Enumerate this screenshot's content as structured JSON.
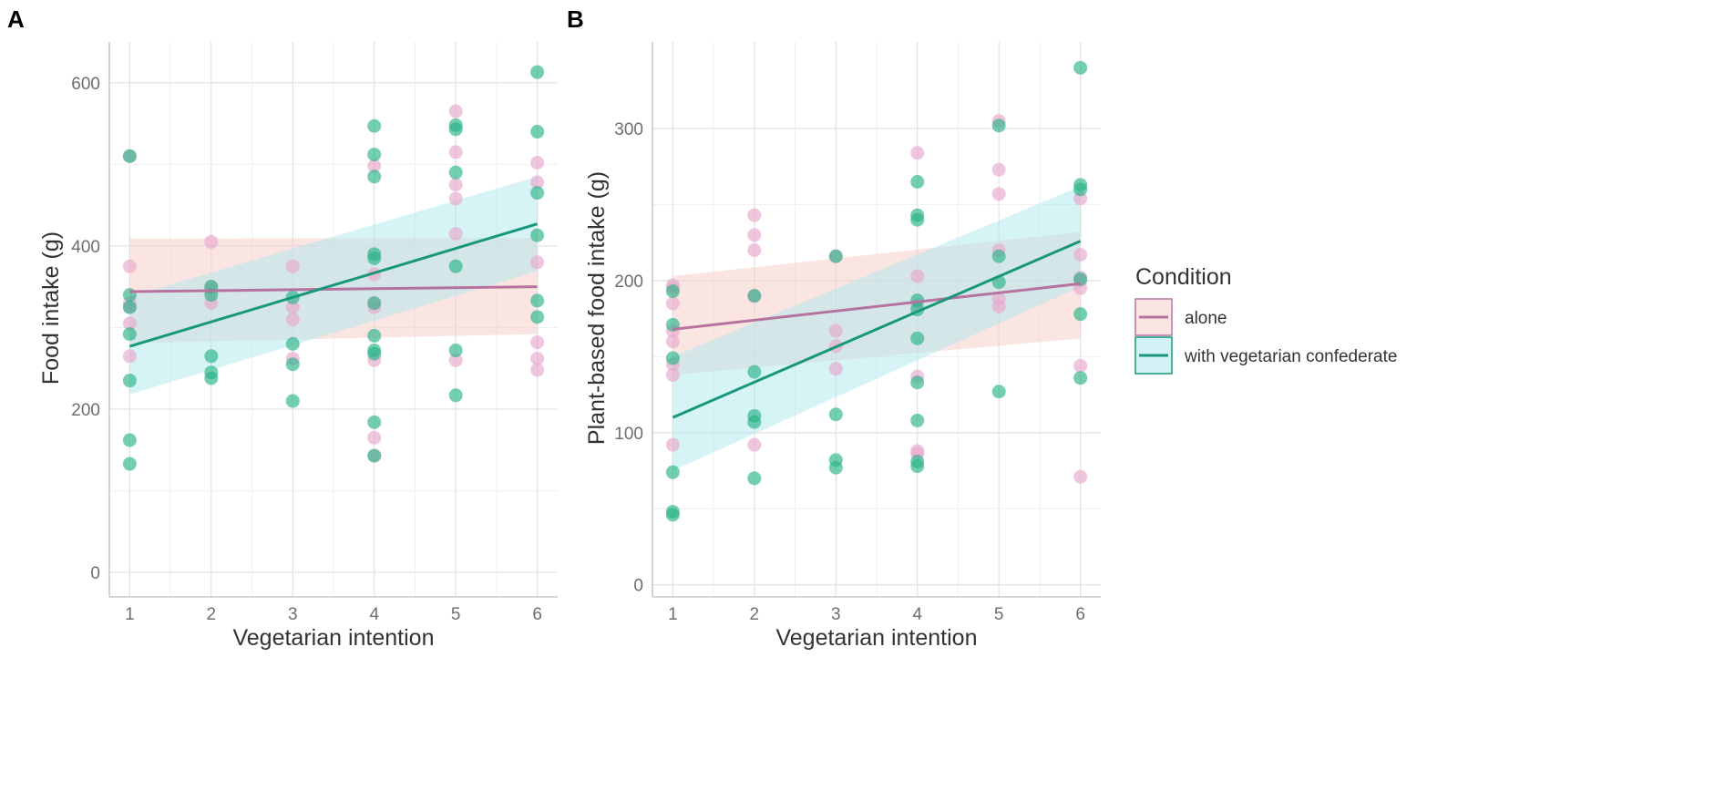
{
  "chart_data": [
    {
      "panel": "A",
      "type": "scatter",
      "xlabel": "Vegetarian intention",
      "ylabel": "Food intake (g)",
      "x_ticks": [
        1,
        2,
        3,
        4,
        5,
        6
      ],
      "y_ticks": [
        0,
        200,
        400,
        600
      ],
      "xlim": [
        0.75,
        6.25
      ],
      "ylim": [
        -30,
        650
      ],
      "grid": true,
      "series": [
        {
          "name": "alone",
          "points": [
            [
              1,
              510
            ],
            [
              1,
              375
            ],
            [
              1,
              330
            ],
            [
              1,
              325
            ],
            [
              1,
              305
            ],
            [
              1,
              265
            ],
            [
              2,
              405
            ],
            [
              2,
              350
            ],
            [
              2,
              345
            ],
            [
              2,
              330
            ],
            [
              3,
              375
            ],
            [
              3,
              325
            ],
            [
              3,
              310
            ],
            [
              3,
              262
            ],
            [
              4,
              498
            ],
            [
              4,
              365
            ],
            [
              4,
              330
            ],
            [
              4,
              325
            ],
            [
              4,
              260
            ],
            [
              4,
              165
            ],
            [
              4,
              143
            ],
            [
              5,
              565
            ],
            [
              5,
              515
            ],
            [
              5,
              475
            ],
            [
              5,
              458
            ],
            [
              5,
              415
            ],
            [
              5,
              260
            ],
            [
              6,
              502
            ],
            [
              6,
              478
            ],
            [
              6,
              380
            ],
            [
              6,
              282
            ],
            [
              6,
              262
            ],
            [
              6,
              248
            ]
          ],
          "fit": {
            "x": [
              1,
              6
            ],
            "y": [
              344,
              350
            ],
            "ci_lower": [
              281,
              292
            ],
            "ci_upper": [
              409,
              410
            ]
          }
        },
        {
          "name": "with vegetarian confederate",
          "points": [
            [
              1,
              510
            ],
            [
              1,
              340
            ],
            [
              1,
              325
            ],
            [
              1,
              292
            ],
            [
              1,
              235
            ],
            [
              1,
              162
            ],
            [
              1,
              133
            ],
            [
              2,
              350
            ],
            [
              2,
              340
            ],
            [
              2,
              265
            ],
            [
              2,
              245
            ],
            [
              2,
              238
            ],
            [
              3,
              337
            ],
            [
              3,
              280
            ],
            [
              3,
              255
            ],
            [
              3,
              210
            ],
            [
              4,
              547
            ],
            [
              4,
              512
            ],
            [
              4,
              485
            ],
            [
              4,
              390
            ],
            [
              4,
              385
            ],
            [
              4,
              330
            ],
            [
              4,
              290
            ],
            [
              4,
              272
            ],
            [
              4,
              268
            ],
            [
              4,
              184
            ],
            [
              4,
              143
            ],
            [
              5,
              548
            ],
            [
              5,
              543
            ],
            [
              5,
              490
            ],
            [
              5,
              375
            ],
            [
              5,
              272
            ],
            [
              5,
              217
            ],
            [
              6,
              613
            ],
            [
              6,
              540
            ],
            [
              6,
              465
            ],
            [
              6,
              413
            ],
            [
              6,
              333
            ],
            [
              6,
              313
            ]
          ],
          "fit": {
            "x": [
              1,
              6
            ],
            "y": [
              277,
              427
            ],
            "ci_lower": [
              218,
              369
            ],
            "ci_upper": [
              338,
              485
            ]
          }
        }
      ]
    },
    {
      "panel": "B",
      "type": "scatter",
      "xlabel": "Vegetarian intention",
      "ylabel": "Plant-based food intake (g)",
      "x_ticks": [
        1,
        2,
        3,
        4,
        5,
        6
      ],
      "y_ticks": [
        0,
        100,
        200,
        300
      ],
      "xlim": [
        0.75,
        6.25
      ],
      "ylim": [
        -8,
        357
      ],
      "grid": true,
      "series": [
        {
          "name": "alone",
          "points": [
            [
              1,
              197
            ],
            [
              1,
              195
            ],
            [
              1,
              185
            ],
            [
              1,
              167
            ],
            [
              1,
              160
            ],
            [
              1,
              145
            ],
            [
              1,
              138
            ],
            [
              1,
              92
            ],
            [
              2,
              243
            ],
            [
              2,
              230
            ],
            [
              2,
              220
            ],
            [
              2,
              190
            ],
            [
              2,
              92
            ],
            [
              3,
              216
            ],
            [
              3,
              167
            ],
            [
              3,
              157
            ],
            [
              3,
              142
            ],
            [
              4,
              284
            ],
            [
              4,
              203
            ],
            [
              4,
              184
            ],
            [
              4,
              137
            ],
            [
              4,
              88
            ],
            [
              4,
              86
            ],
            [
              5,
              305
            ],
            [
              5,
              273
            ],
            [
              5,
              257
            ],
            [
              5,
              220
            ],
            [
              5,
              188
            ],
            [
              5,
              183
            ],
            [
              6,
              254
            ],
            [
              6,
              217
            ],
            [
              6,
              202
            ],
            [
              6,
              200
            ],
            [
              6,
              195
            ],
            [
              6,
              144
            ],
            [
              6,
              71
            ]
          ],
          "fit": {
            "x": [
              1,
              6
            ],
            "y": [
              168,
              198
            ],
            "ci_lower": [
              138,
              162
            ],
            "ci_upper": [
              203,
              232
            ]
          }
        },
        {
          "name": "with vegetarian confederate",
          "points": [
            [
              1,
              193
            ],
            [
              1,
              171
            ],
            [
              1,
              149
            ],
            [
              1,
              74
            ],
            [
              1,
              48
            ],
            [
              1,
              46
            ],
            [
              2,
              190
            ],
            [
              2,
              140
            ],
            [
              2,
              111
            ],
            [
              2,
              107
            ],
            [
              2,
              70
            ],
            [
              3,
              216
            ],
            [
              3,
              112
            ],
            [
              3,
              82
            ],
            [
              3,
              77
            ],
            [
              4,
              265
            ],
            [
              4,
              243
            ],
            [
              4,
              240
            ],
            [
              4,
              187
            ],
            [
              4,
              181
            ],
            [
              4,
              162
            ],
            [
              4,
              133
            ],
            [
              4,
              108
            ],
            [
              4,
              81
            ],
            [
              4,
              78
            ],
            [
              5,
              302
            ],
            [
              5,
              216
            ],
            [
              5,
              199
            ],
            [
              5,
              127
            ],
            [
              6,
              340
            ],
            [
              6,
              263
            ],
            [
              6,
              260
            ],
            [
              6,
              201
            ],
            [
              6,
              178
            ],
            [
              6,
              136
            ]
          ],
          "fit": {
            "x": [
              1,
              6
            ],
            "y": [
              110,
              226
            ],
            "ci_lower": [
              75,
              196
            ],
            "ci_upper": [
              150,
              262
            ]
          }
        }
      ]
    }
  ],
  "legend": {
    "title": "Condition",
    "items": [
      {
        "label": "alone",
        "line_color": "#b7739f",
        "point_color": "#e8a7cc",
        "ribbon_color": "#f8cfcc"
      },
      {
        "label": "with vegetarian confederate",
        "line_color": "#18987a",
        "point_color": "#2ab389",
        "ribbon_color": "#aee8ec"
      }
    ]
  }
}
